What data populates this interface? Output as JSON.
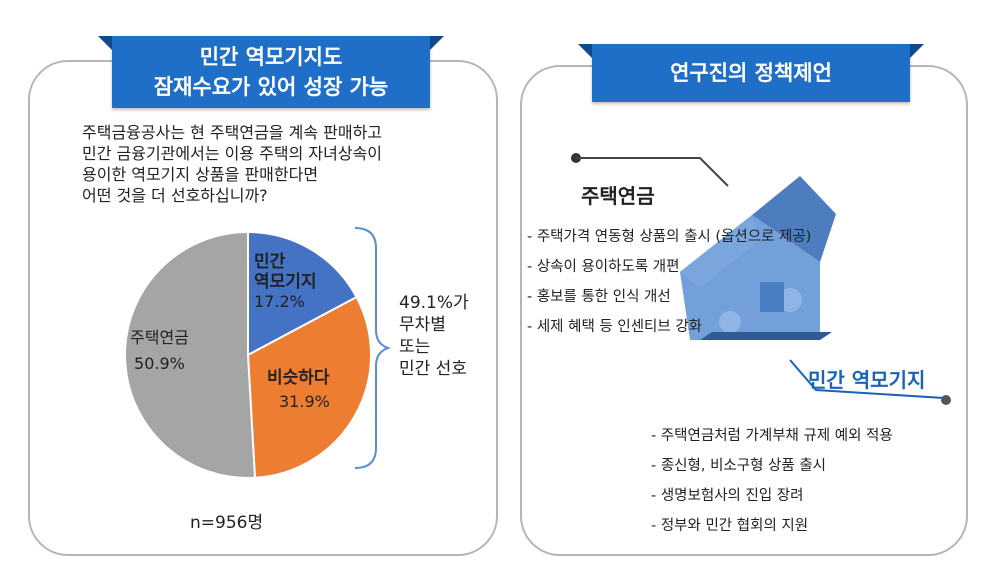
{
  "left_panel": {
    "banner_lines": [
      "민간 역모기지도",
      "잠재수요가 있어 성장 가능"
    ],
    "question_lines": [
      "주택금융공사는 현 주택연금을 계속 판매하고",
      "민간 금융기관에서는 이용 주택의 자녀상속이",
      "용이한 역모기지 상품을 판매한다면",
      "어떤 것을 더 선호하십니까?"
    ],
    "summary_lines": [
      "49.1%가",
      "무차별",
      "또는",
      "민간 선호"
    ],
    "sample_size": "n=956명"
  },
  "chart_data": {
    "type": "pie",
    "slices": [
      {
        "label_lines": [
          "민간",
          "역모기지"
        ],
        "value": 17.2,
        "value_label": "17.2%",
        "color": "#4472c4"
      },
      {
        "label_lines": [
          "비슷하다"
        ],
        "value": 31.9,
        "value_label": "31.9%",
        "color": "#ed7d31"
      },
      {
        "label_lines": [
          "주택연금"
        ],
        "value": 50.9,
        "value_label": "50.9%",
        "color": "#a5a5a5"
      }
    ],
    "start": "12 o'clock, clockwise"
  },
  "right_panel": {
    "banner": "연구진의 정책제언",
    "section1": {
      "title": "주택연금",
      "items": [
        "- 주택가격 연동형 상품의 출시 (옵션으로 제공)",
        "- 상속이 용이하도록 개편",
        "- 홍보를 통한 인식 개선",
        "- 세제 혜택 등 인센티브 강화"
      ]
    },
    "section2": {
      "title": "민간 역모기지",
      "items": [
        "- 주택연금처럼 가계부채 규제 예외 적용",
        "- 종신형, 비소구형 상품 출시",
        "- 생명보험사의 진입 장려",
        "- 정부와 민간 협회의 지원"
      ]
    },
    "icon": "house-puzzle-icon",
    "colors": {
      "banner": "#1f6fc9",
      "accent": "#1a63b8",
      "house": "#5b8fd1"
    }
  }
}
